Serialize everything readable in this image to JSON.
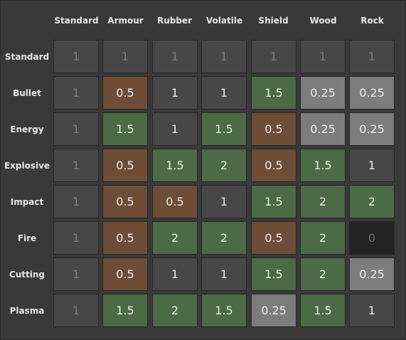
{
  "matrix": {
    "columns": [
      "Standard",
      "Armour",
      "Rubber",
      "Volatile",
      "Shield",
      "Wood",
      "Rock"
    ],
    "rows": [
      {
        "label": "Standard",
        "values": [
          "1",
          "1",
          "1",
          "1",
          "1",
          "1",
          "1"
        ]
      },
      {
        "label": "Bullet",
        "values": [
          "1",
          "0.5",
          "1",
          "1",
          "1.5",
          "0.25",
          "0.25"
        ]
      },
      {
        "label": "Energy",
        "values": [
          "1",
          "1.5",
          "1",
          "1.5",
          "0.5",
          "0.25",
          "0.25"
        ]
      },
      {
        "label": "Explosive",
        "values": [
          "1",
          "0.5",
          "1.5",
          "2",
          "0.5",
          "1.5",
          "1"
        ]
      },
      {
        "label": "Impact",
        "values": [
          "1",
          "0.5",
          "0.5",
          "1",
          "1.5",
          "2",
          "2"
        ]
      },
      {
        "label": "Fire",
        "values": [
          "1",
          "0.5",
          "2",
          "2",
          "0.5",
          "2",
          "0"
        ]
      },
      {
        "label": "Cutting",
        "values": [
          "1",
          "0.5",
          "1",
          "1",
          "1.5",
          "2",
          "0.25"
        ]
      },
      {
        "label": "Plasma",
        "values": [
          "1",
          "1.5",
          "2",
          "1.5",
          "0.25",
          "1.5",
          "1"
        ]
      }
    ]
  },
  "colors": {
    "background": "#393939",
    "neutral_cell": "#474747",
    "weak_cell": "#6e4d37",
    "strong_cell": "#4b6a45",
    "quarter_cell": "#7c7c7c",
    "zero_cell": "#232323",
    "text": "#ededed",
    "muted_text": "#7e7e7e"
  }
}
